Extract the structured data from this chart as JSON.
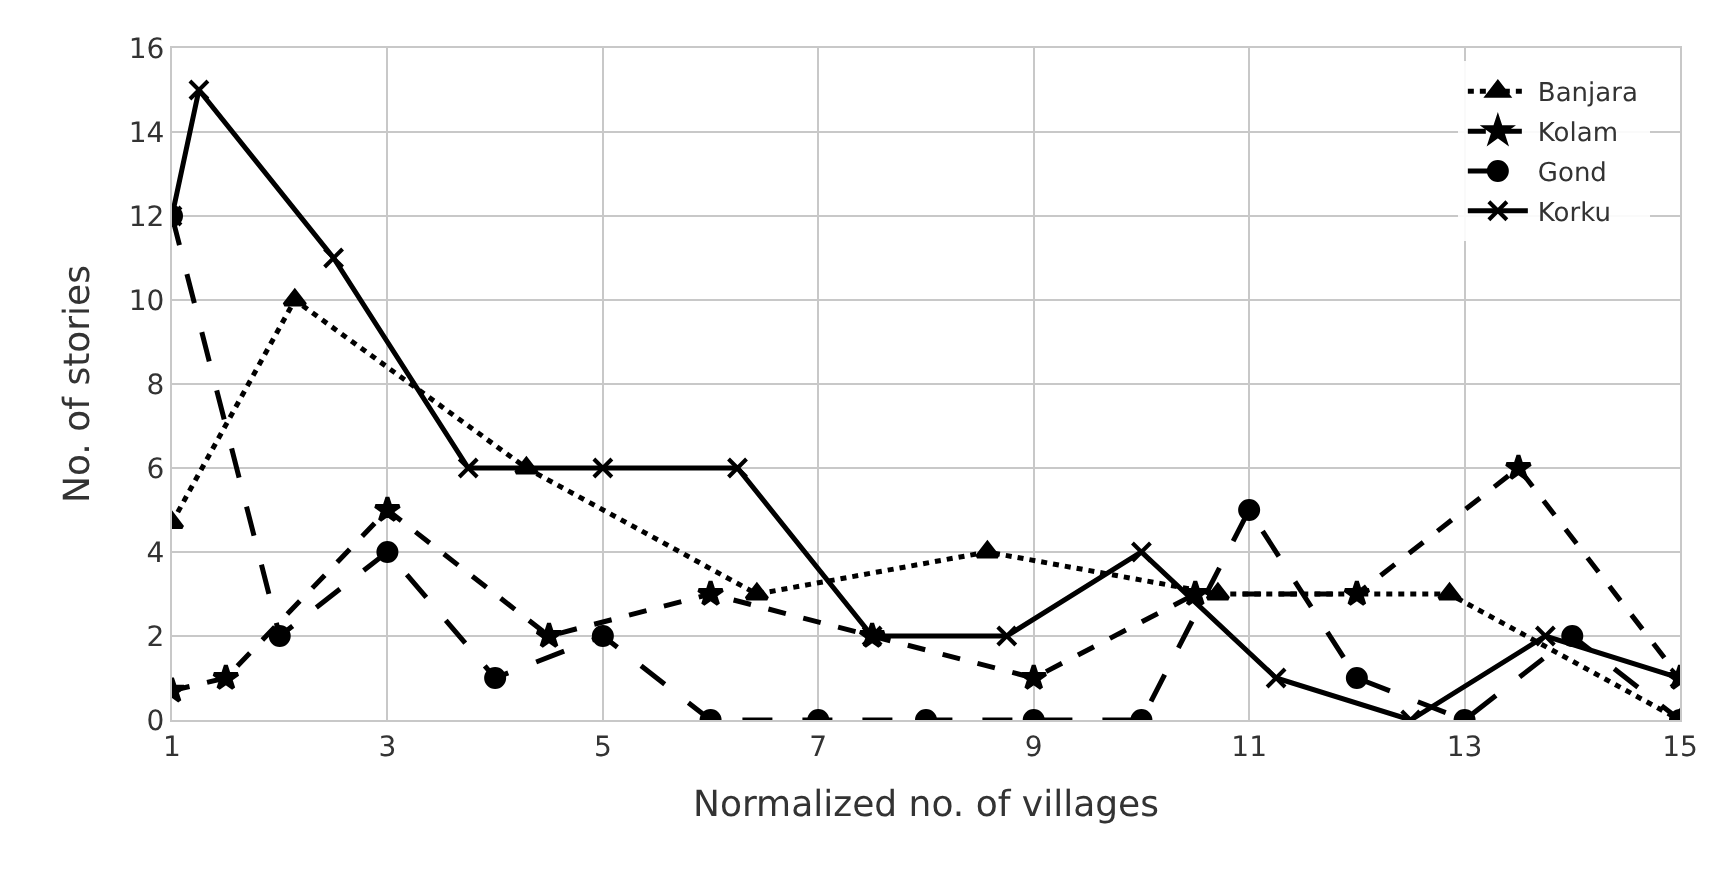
{
  "chart_data": {
    "type": "line",
    "xlabel": "Normalized no. of villages",
    "ylabel": "No. of stories",
    "xlim": [
      1,
      15
    ],
    "xticks": [
      1,
      3,
      5,
      7,
      9,
      11,
      13,
      15
    ],
    "ylim": [
      0,
      16
    ],
    "yticks": [
      0,
      2,
      4,
      6,
      8,
      10,
      12,
      14,
      16
    ],
    "grid": true,
    "legend": "top right",
    "series": [
      {
        "name": "Banjara",
        "color": "#000000",
        "marker": "triangle",
        "line_style": "dotted",
        "x": [
          1,
          2.14,
          4.29,
          6.43,
          8.57,
          10.71,
          12.86,
          15
        ],
        "values": [
          4.7,
          10,
          6,
          3,
          4,
          3,
          3,
          0
        ]
      },
      {
        "name": "Kolam",
        "color": "#000000",
        "marker": "star",
        "line_style": "dashed",
        "x": [
          1,
          1.5,
          3,
          4.5,
          6,
          7.5,
          9,
          10.5,
          12,
          13.5,
          15
        ],
        "values": [
          0.7,
          1,
          5,
          2,
          3,
          2,
          1,
          3,
          3,
          6,
          1
        ]
      },
      {
        "name": "Gond",
        "color": "#000000",
        "marker": "circle",
        "line_style": "longdash",
        "x": [
          1,
          2,
          3,
          4,
          5,
          6,
          7,
          8,
          9,
          10,
          11,
          12,
          13,
          14,
          15
        ],
        "values": [
          12,
          2,
          4,
          1,
          2,
          0,
          0,
          0,
          0,
          0,
          5,
          1,
          0,
          2,
          0
        ]
      },
      {
        "name": "Korku",
        "color": "#000000",
        "marker": "cross",
        "line_style": "solid",
        "x": [
          1,
          1.25,
          2.5,
          3.75,
          5,
          6.25,
          7.5,
          8.75,
          10,
          11.25,
          12.5,
          13.75,
          15
        ],
        "values": [
          12,
          15,
          11,
          6,
          6,
          6,
          2,
          2,
          4,
          1,
          0,
          2,
          1
        ]
      }
    ]
  }
}
